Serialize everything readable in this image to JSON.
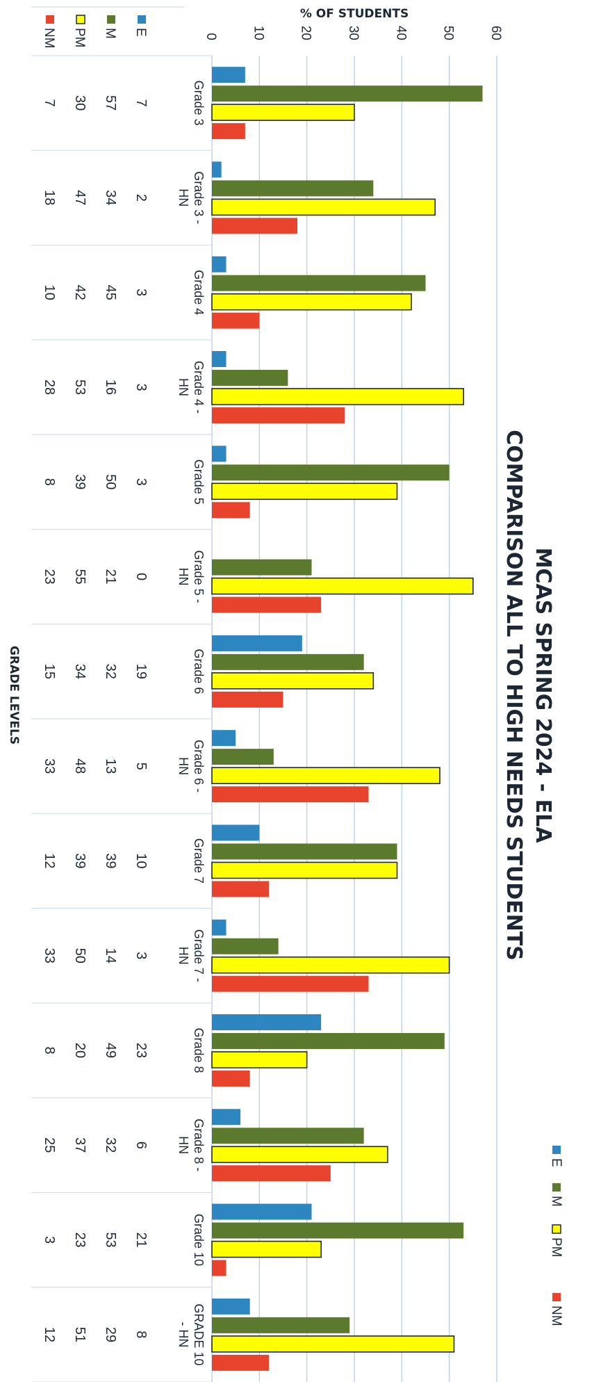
{
  "chart_data": {
    "type": "bar",
    "title_lines": [
      "MCAS SPRING 2024 - ELA",
      "COMPARISON ALL TO HIGH NEEDS STUDENTS"
    ],
    "ylabel": "% OF STUDENTS",
    "xlabel": "GRADE LEVELS",
    "ylim": [
      0,
      60
    ],
    "yticks": [
      0,
      10,
      20,
      30,
      40,
      50,
      60
    ],
    "grid": true,
    "legend_position": "right",
    "categories": [
      [
        "Grade 3"
      ],
      [
        "Grade 3 -",
        "HN"
      ],
      [
        "Grade 4"
      ],
      [
        "Grade 4 -",
        "HN"
      ],
      [
        "Grade 5"
      ],
      [
        "Grade 5 -",
        "HN"
      ],
      [
        "Grade 6"
      ],
      [
        "Grade 6 -",
        "HN"
      ],
      [
        "Grade 7"
      ],
      [
        "Grade 7 -",
        "HN"
      ],
      [
        "Grade 8"
      ],
      [
        "Grade 8 -",
        "HN"
      ],
      [
        "Grade 10"
      ],
      [
        "GRADE 10",
        "- HN"
      ]
    ],
    "series": [
      {
        "name": "E",
        "color": "#2e86c1",
        "outlined": false,
        "values": [
          7,
          2,
          3,
          3,
          3,
          0,
          19,
          5,
          10,
          3,
          23,
          6,
          21,
          8
        ]
      },
      {
        "name": "M",
        "color": "#5b7a2e",
        "outlined": false,
        "values": [
          57,
          34,
          45,
          16,
          50,
          21,
          32,
          13,
          39,
          14,
          49,
          32,
          53,
          29
        ]
      },
      {
        "name": "PM",
        "color": "#ffff00",
        "outlined": true,
        "values": [
          30,
          47,
          42,
          53,
          39,
          55,
          34,
          48,
          39,
          50,
          20,
          37,
          23,
          51
        ]
      },
      {
        "name": "NM",
        "color": "#e8432d",
        "outlined": false,
        "values": [
          7,
          18,
          10,
          28,
          8,
          23,
          15,
          33,
          12,
          33,
          8,
          25,
          3,
          12
        ]
      }
    ]
  }
}
